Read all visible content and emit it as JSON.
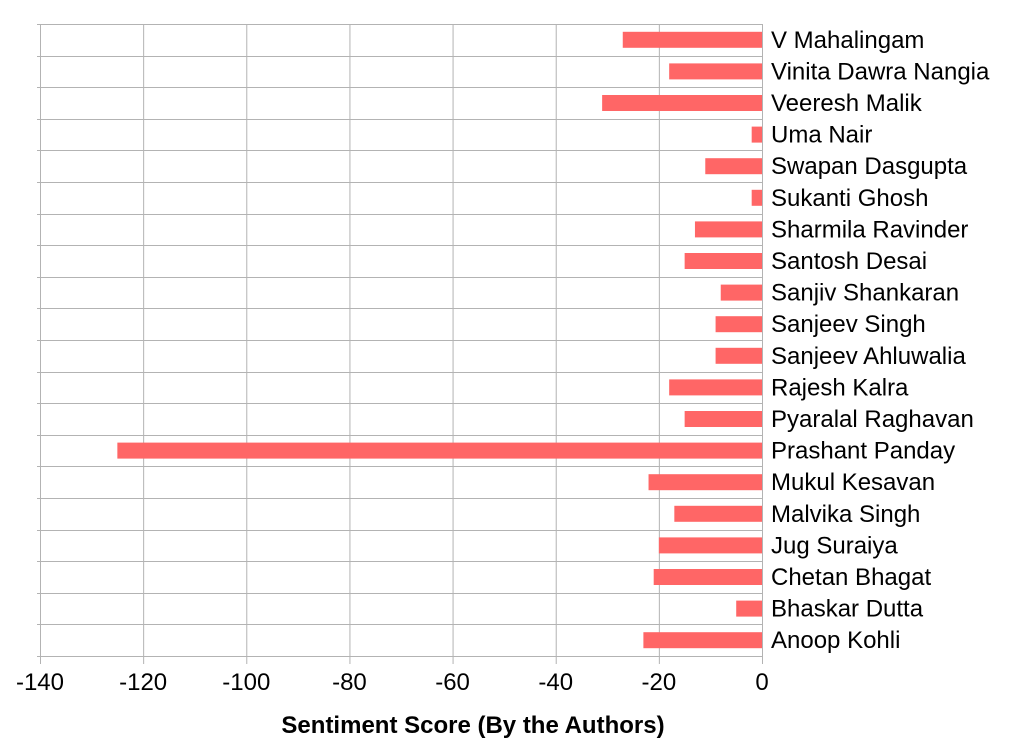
{
  "chart_data": {
    "type": "bar",
    "orientation": "horizontal",
    "title": "",
    "xlabel": "Sentiment Score (By the Authors)",
    "ylabel": "",
    "xlim": [
      -140,
      0
    ],
    "x_ticks": [
      -140,
      -120,
      -100,
      -80,
      -60,
      -40,
      -20,
      0
    ],
    "grid": true,
    "legend": "none",
    "bar_color": "#ff6666",
    "categories": [
      "V Mahalingam",
      "Vinita Dawra Nangia",
      "Veeresh Malik",
      "Uma Nair",
      "Swapan Dasgupta",
      "Sukanti Ghosh",
      "Sharmila Ravinder",
      "Santosh Desai",
      "Sanjiv Shankaran",
      "Sanjeev Singh",
      "Sanjeev Ahluwalia",
      "Rajesh Kalra",
      "Pyaralal Raghavan",
      "Prashant Panday",
      "Mukul Kesavan",
      "Malvika Singh",
      "Jug Suraiya",
      "Chetan Bhagat",
      "Bhaskar Dutta",
      "Anoop Kohli"
    ],
    "values": [
      -27,
      -18,
      -31,
      -2,
      -11,
      -2,
      -13,
      -15,
      -8,
      -9,
      -9,
      -18,
      -15,
      -125,
      -22,
      -17,
      -20,
      -21,
      -5,
      -23
    ]
  }
}
